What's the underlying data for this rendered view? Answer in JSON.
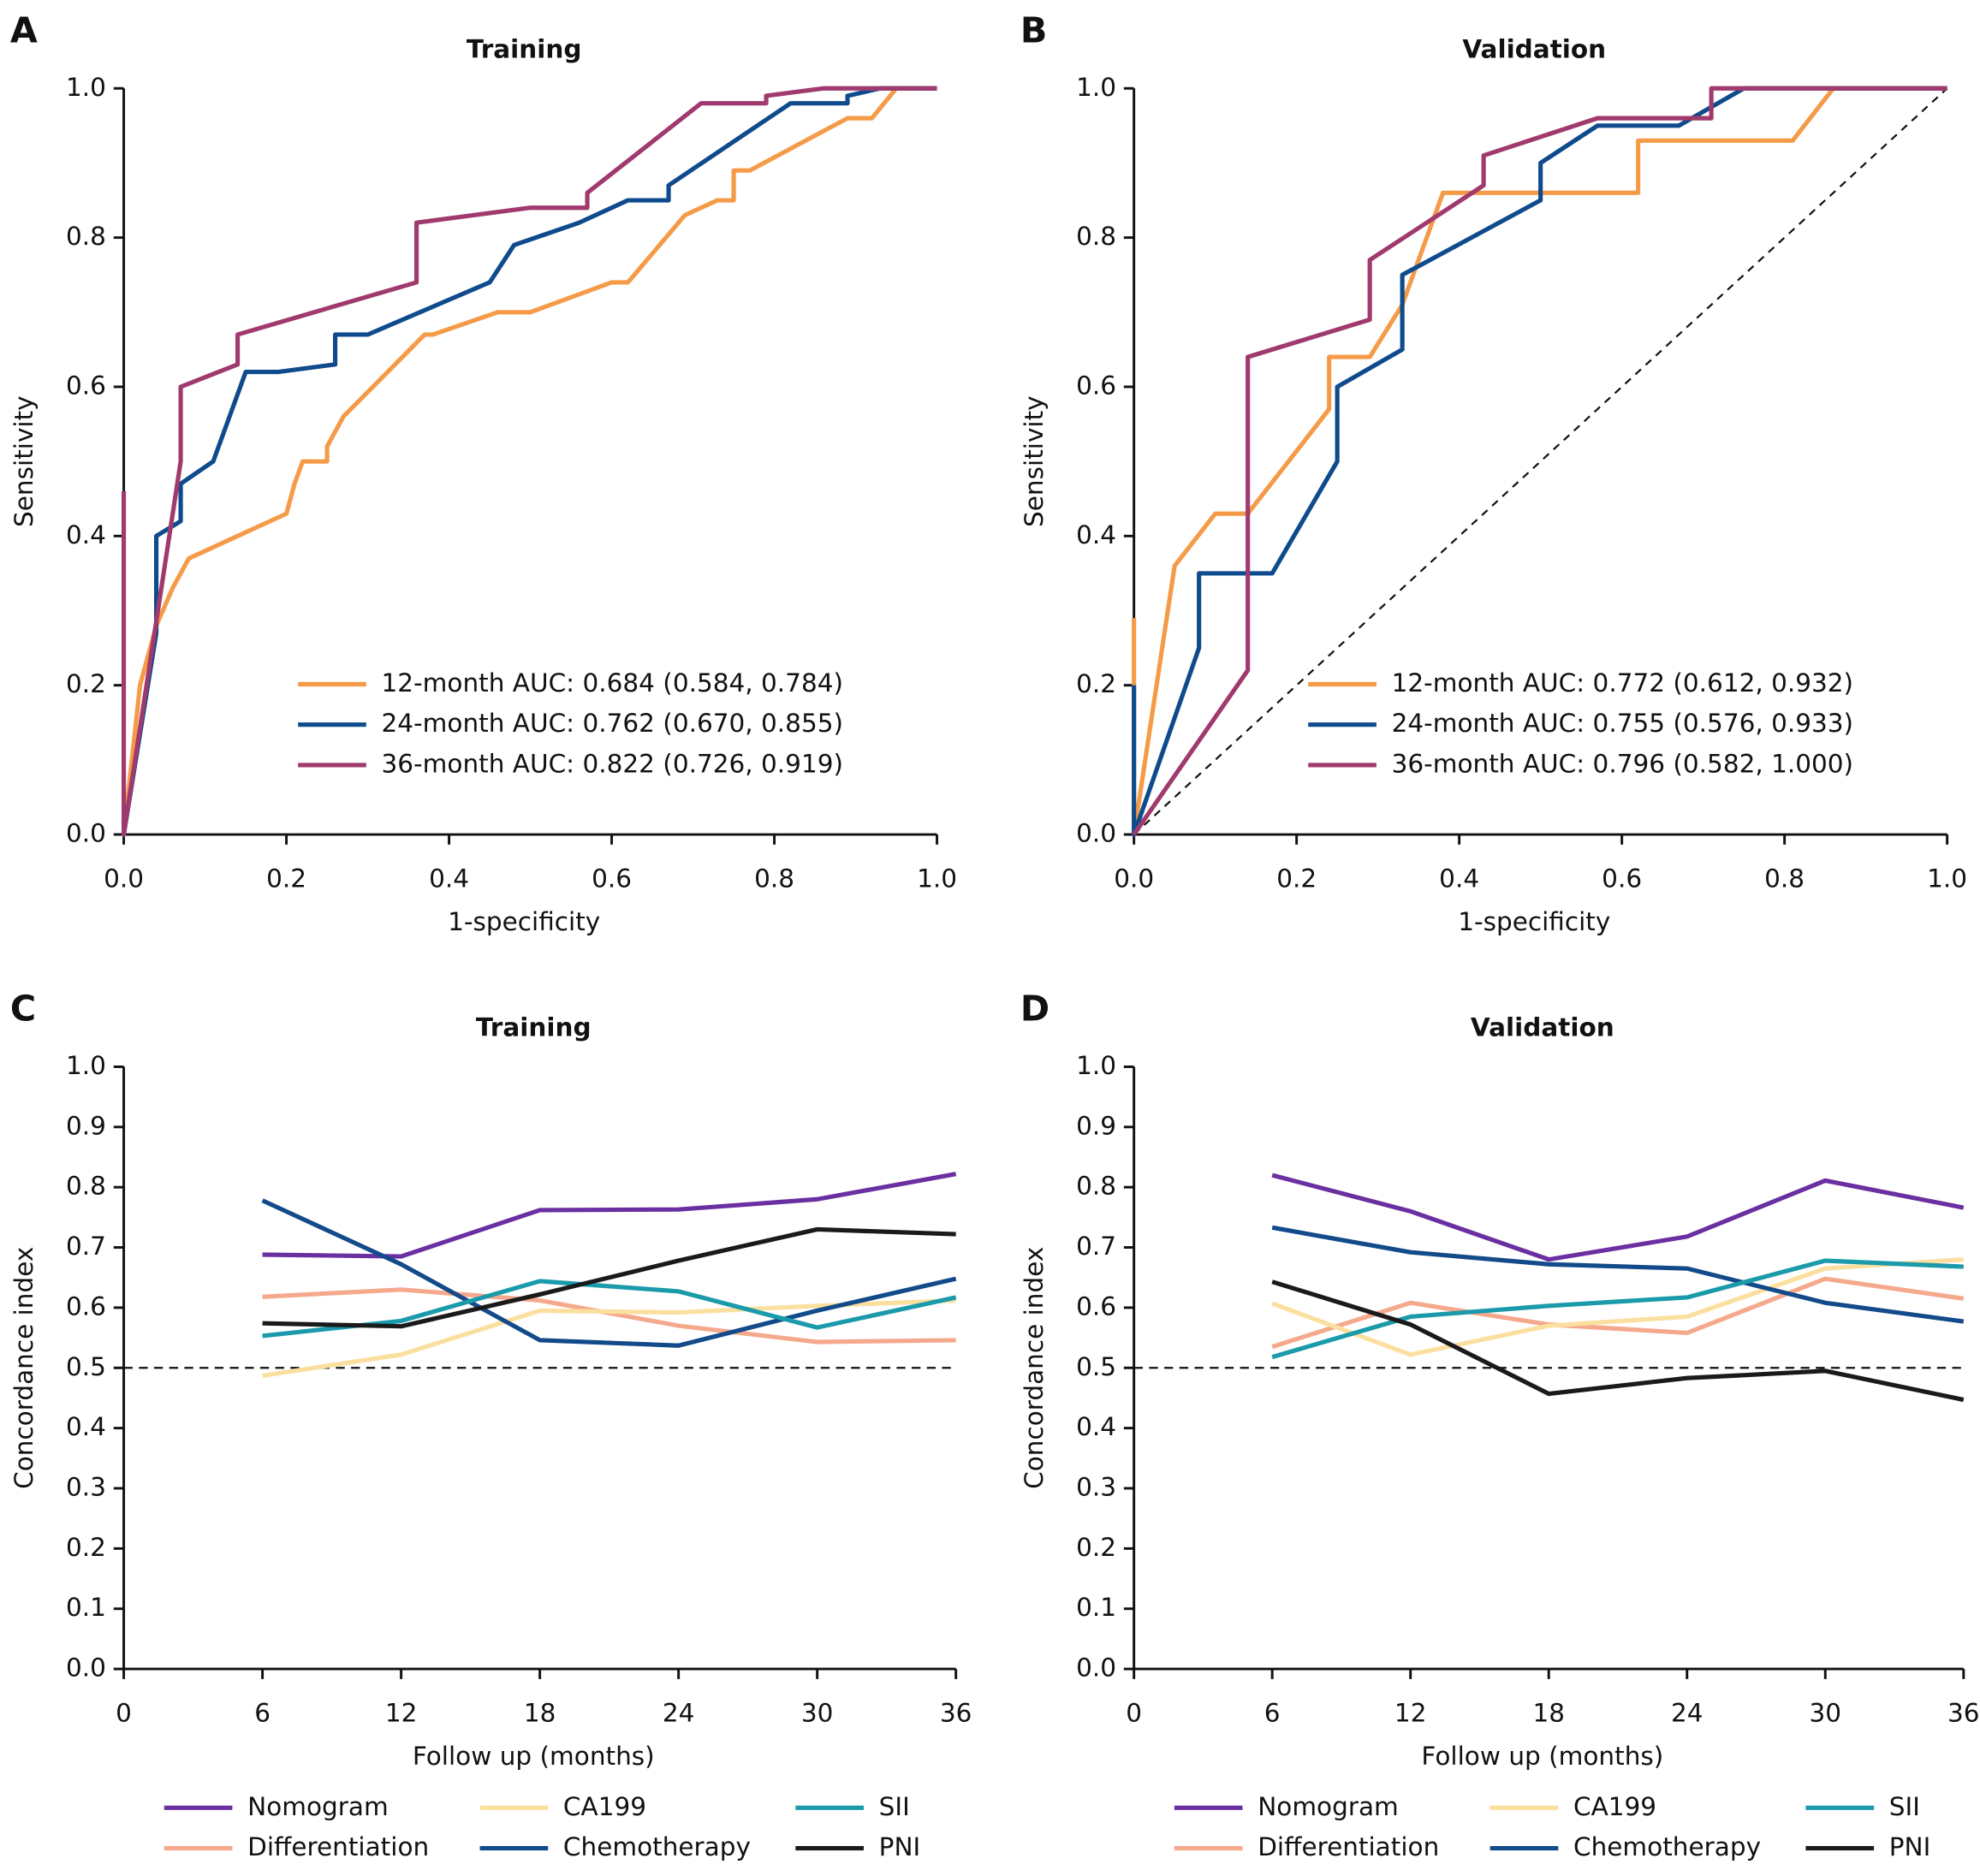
{
  "chart_data": [
    {
      "type": "line",
      "label": "A",
      "title": "Training",
      "xlabel": "1-specificity",
      "ylabel": "Sensitivity",
      "xlim": [
        0,
        1
      ],
      "ylim": [
        0,
        1
      ],
      "xticks": [
        {
          "value": 0,
          "label": "0.0"
        },
        {
          "value": 0.2,
          "label": "0.2"
        },
        {
          "value": 0.4,
          "label": "0.4"
        },
        {
          "value": 0.6,
          "label": "0.6"
        },
        {
          "value": 0.8,
          "label": "0.8"
        },
        {
          "value": 1,
          "label": "1.0"
        }
      ],
      "yticks": [
        {
          "value": 0,
          "label": "0.0"
        },
        {
          "value": 0.2,
          "label": "0.2"
        },
        {
          "value": 0.4,
          "label": "0.4"
        },
        {
          "value": 0.6,
          "label": "0.6"
        },
        {
          "value": 0.8,
          "label": "0.8"
        },
        {
          "value": 1,
          "label": "1.0"
        }
      ],
      "legend": "lower right",
      "series": [
        {
          "name": "12-month AUC: 0.684 (0.584, 0.784)",
          "color": "#f59b48",
          "x": [
            0,
            0.02,
            0.04,
            0.06,
            0.07,
            0.08,
            0.2,
            0.21,
            0.22,
            0.25,
            0.25,
            0.27,
            0.37,
            0.38,
            0.46,
            0.5,
            0.6,
            0.62,
            0.69,
            0.73,
            0.75,
            0.75,
            0.77,
            0.89,
            0.92,
            0.95,
            1
          ],
          "values": [
            0,
            0.2,
            0.28,
            0.33,
            0.35,
            0.37,
            0.43,
            0.47,
            0.5,
            0.5,
            0.52,
            0.56,
            0.67,
            0.67,
            0.7,
            0.7,
            0.74,
            0.74,
            0.83,
            0.85,
            0.85,
            0.89,
            0.89,
            0.96,
            0.96,
            1,
            1
          ]
        },
        {
          "name": "24-month AUC: 0.762 (0.670, 0.855)",
          "color": "#0f4b8c",
          "x": [
            0,
            0.04,
            0.04,
            0.07,
            0.07,
            0.11,
            0.15,
            0.19,
            0.26,
            0.26,
            0.3,
            0.45,
            0.48,
            0.56,
            0.62,
            0.67,
            0.67,
            0.82,
            0.89,
            0.89,
            0.93,
            1
          ],
          "values": [
            0,
            0.27,
            0.4,
            0.42,
            0.47,
            0.5,
            0.62,
            0.62,
            0.63,
            0.67,
            0.67,
            0.74,
            0.79,
            0.82,
            0.85,
            0.85,
            0.87,
            0.98,
            0.98,
            0.99,
            1,
            1
          ]
        },
        {
          "name": "36-month AUC: 0.822 (0.726, 0.919)",
          "color": "#a03a6e",
          "x": [
            0,
            0,
            0.07,
            0.07,
            0.14,
            0.14,
            0.36,
            0.36,
            0.5,
            0.57,
            0.57,
            0.71,
            0.79,
            0.79,
            0.86,
            1
          ],
          "values": [
            0.46,
            0,
            0.5,
            0.6,
            0.63,
            0.67,
            0.74,
            0.82,
            0.84,
            0.84,
            0.86,
            0.98,
            0.98,
            0.99,
            1,
            1
          ]
        }
      ]
    },
    {
      "type": "line",
      "label": "B",
      "title": "Validation",
      "xlabel": "1-specificity",
      "ylabel": "Sensitivity",
      "xlim": [
        0,
        1
      ],
      "ylim": [
        0,
        1
      ],
      "diagonal": true,
      "xticks": [
        {
          "value": 0,
          "label": "0.0"
        },
        {
          "value": 0.2,
          "label": "0.2"
        },
        {
          "value": 0.4,
          "label": "0.4"
        },
        {
          "value": 0.6,
          "label": "0.6"
        },
        {
          "value": 0.8,
          "label": "0.8"
        },
        {
          "value": 1,
          "label": "1.0"
        }
      ],
      "yticks": [
        {
          "value": 0,
          "label": "0.0"
        },
        {
          "value": 0.2,
          "label": "0.2"
        },
        {
          "value": 0.4,
          "label": "0.4"
        },
        {
          "value": 0.6,
          "label": "0.6"
        },
        {
          "value": 0.8,
          "label": "0.8"
        },
        {
          "value": 1,
          "label": "1.0"
        }
      ],
      "legend": "lower right",
      "series": [
        {
          "name": "12-month AUC: 0.772 (0.612, 0.932)",
          "color": "#f59b48",
          "x": [
            0,
            0,
            0.05,
            0.1,
            0.14,
            0.24,
            0.24,
            0.29,
            0.33,
            0.38,
            0.62,
            0.62,
            0.81,
            0.86,
            1
          ],
          "values": [
            0.29,
            0,
            0.36,
            0.43,
            0.43,
            0.57,
            0.64,
            0.64,
            0.71,
            0.86,
            0.86,
            0.93,
            0.93,
            1,
            1
          ]
        },
        {
          "name": "24-month AUC: 0.755 (0.576, 0.933)",
          "color": "#0f4b8c",
          "x": [
            0,
            0,
            0.08,
            0.08,
            0.17,
            0.25,
            0.25,
            0.33,
            0.33,
            0.5,
            0.5,
            0.57,
            0.67,
            0.75,
            1
          ],
          "values": [
            0.2,
            0,
            0.25,
            0.35,
            0.35,
            0.5,
            0.6,
            0.65,
            0.75,
            0.85,
            0.9,
            0.95,
            0.95,
            1,
            1
          ]
        },
        {
          "name": "36-month AUC: 0.796 (0.582, 1.000)",
          "color": "#a03a6e",
          "x": [
            0,
            0.14,
            0.14,
            0.29,
            0.29,
            0.43,
            0.43,
            0.57,
            0.71,
            0.71,
            1
          ],
          "values": [
            0,
            0.22,
            0.64,
            0.69,
            0.77,
            0.87,
            0.91,
            0.96,
            0.96,
            1,
            1
          ]
        }
      ]
    },
    {
      "type": "line",
      "label": "C",
      "title": "Training",
      "xlabel": "Follow up (months)",
      "ylabel": "Concordance index",
      "xlim": [
        0,
        36
      ],
      "ylim": [
        0,
        1
      ],
      "reference": 0.5,
      "xticks": [
        0,
        6,
        12,
        18,
        24,
        30,
        36
      ],
      "yticks": [
        {
          "value": 0,
          "label": "0.0"
        },
        0.1,
        0.2,
        0.3,
        0.4,
        0.5,
        0.6,
        0.7,
        0.8,
        0.9,
        {
          "value": 1,
          "label": "1.0"
        }
      ],
      "legend": "bottom",
      "x": [
        6,
        12,
        18,
        24,
        30,
        36
      ],
      "series": [
        {
          "name": "Nomogram",
          "color": "#6a2fa0",
          "values": [
            0.688,
            0.685,
            0.762,
            0.763,
            0.78,
            0.822
          ]
        },
        {
          "name": "Differentiation",
          "color": "#f5a98c",
          "values": [
            0.618,
            0.63,
            0.612,
            0.57,
            0.543,
            0.546
          ]
        },
        {
          "name": "CA199",
          "color": "#fbdf9e",
          "values": [
            0.487,
            0.522,
            0.595,
            0.592,
            0.603,
            0.612
          ]
        },
        {
          "name": "Chemotherapy",
          "color": "#124a8a",
          "values": [
            0.778,
            0.672,
            0.546,
            0.537,
            0.595,
            0.648
          ]
        },
        {
          "name": "SII",
          "color": "#1a9aaa",
          "values": [
            0.553,
            0.578,
            0.644,
            0.627,
            0.567,
            0.617
          ]
        },
        {
          "name": "PNI",
          "color": "#1a1a1a",
          "values": [
            0.574,
            0.569,
            0.622,
            0.678,
            0.73,
            0.722
          ]
        }
      ]
    },
    {
      "type": "line",
      "label": "D",
      "title": "Validation",
      "xlabel": "Follow up (months)",
      "ylabel": "Concordance index",
      "xlim": [
        0,
        36
      ],
      "ylim": [
        0,
        1
      ],
      "reference": 0.5,
      "xticks": [
        0,
        6,
        12,
        18,
        24,
        30,
        36
      ],
      "yticks": [
        {
          "value": 0,
          "label": "0.0"
        },
        0.1,
        0.2,
        0.3,
        0.4,
        0.5,
        0.6,
        0.7,
        0.8,
        0.9,
        {
          "value": 1,
          "label": "1.0"
        }
      ],
      "legend": "bottom",
      "x": [
        6,
        12,
        18,
        24,
        30,
        36
      ],
      "series": [
        {
          "name": "Nomogram",
          "color": "#6a2fa0",
          "values": [
            0.82,
            0.76,
            0.68,
            0.718,
            0.811,
            0.766
          ]
        },
        {
          "name": "Differentiation",
          "color": "#f5a98c",
          "values": [
            0.535,
            0.608,
            0.572,
            0.558,
            0.648,
            0.615
          ]
        },
        {
          "name": "CA199",
          "color": "#fbdf9e",
          "values": [
            0.607,
            0.522,
            0.57,
            0.585,
            0.665,
            0.68
          ]
        },
        {
          "name": "Chemotherapy",
          "color": "#124a8a",
          "values": [
            0.733,
            0.692,
            0.672,
            0.665,
            0.608,
            0.577
          ]
        },
        {
          "name": "SII",
          "color": "#1a9aaa",
          "values": [
            0.518,
            0.585,
            0.603,
            0.617,
            0.678,
            0.668
          ]
        },
        {
          "name": "PNI",
          "color": "#1a1a1a",
          "values": [
            0.643,
            0.572,
            0.457,
            0.483,
            0.495,
            0.447
          ]
        }
      ]
    }
  ]
}
